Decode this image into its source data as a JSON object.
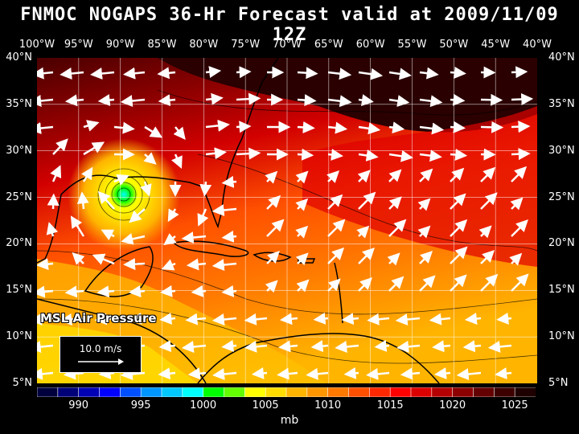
{
  "title": "FNMOC NOGAPS 36-Hr Forecast valid at 2009/11/09 12Z",
  "lon_labels": [
    "100°W",
    "95°W",
    "90°W",
    "85°W",
    "80°W",
    "75°W",
    "70°W",
    "65°W",
    "60°W",
    "55°W",
    "50°W",
    "45°W",
    "40°W"
  ],
  "lat_labels": [
    "40°N",
    "35°N",
    "30°N",
    "25°N",
    "20°N",
    "15°N",
    "10°N",
    "5°N"
  ],
  "map_label": "MSL Air Pressure",
  "reference_vector": {
    "label": "10.0 m/s"
  },
  "colorbar": {
    "labels": [
      "990",
      "995",
      "1000",
      "1005",
      "1010",
      "1015",
      "1020",
      "1025"
    ],
    "unit": "mb",
    "colors": [
      "#00003c",
      "#000078",
      "#0000b4",
      "#0000ff",
      "#0050ff",
      "#0096ff",
      "#00c8ff",
      "#00ffff",
      "#00ff00",
      "#64ff00",
      "#ffff00",
      "#ffdc00",
      "#ffb400",
      "#ff9600",
      "#ff7800",
      "#ff5000",
      "#ff2800",
      "#ff0000",
      "#dc0000",
      "#b40000",
      "#8c0000",
      "#640000",
      "#3c0000",
      "#1e0000"
    ]
  },
  "colors": {
    "background": "#000000",
    "arrow": "#ffffff",
    "land_outline": "#000000",
    "grid": "#ffffff"
  },
  "cyclone_center": {
    "lon": "93°W",
    "lat": "25.5°N"
  }
}
